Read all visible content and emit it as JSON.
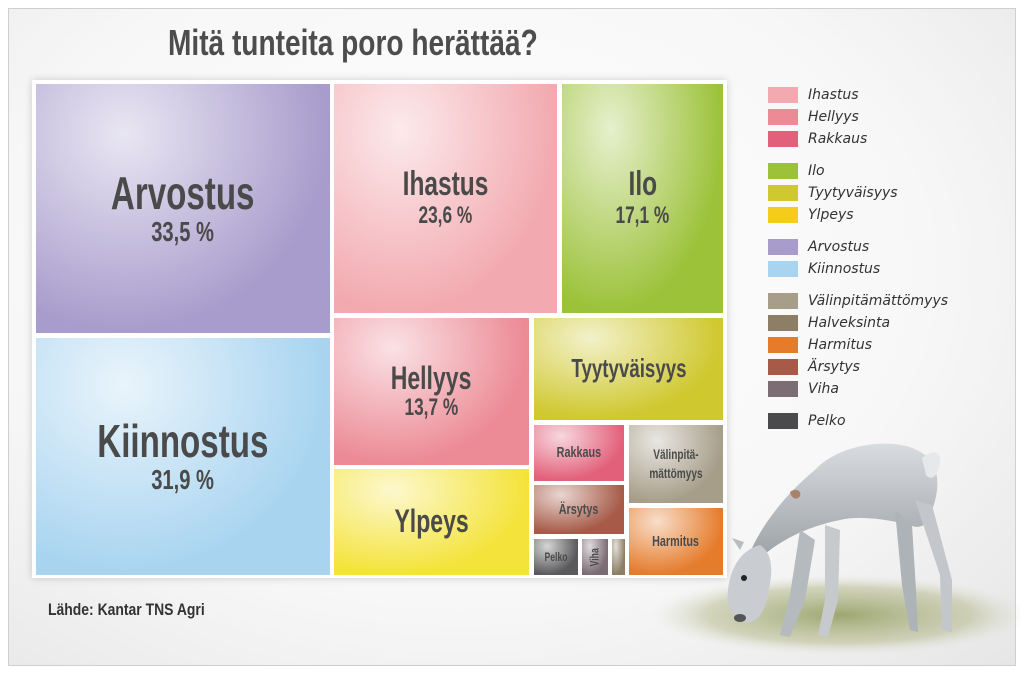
{
  "chart_data": {
    "type": "treemap",
    "title": "Mitä tunteita poro herättää?",
    "cells": [
      {
        "label": "Arvostus",
        "value": 33.5,
        "display": "33,5 %",
        "color": "#a89ccc"
      },
      {
        "label": "Kiinnostus",
        "value": 31.9,
        "display": "31,9 %",
        "color": "#a8d4f0"
      },
      {
        "label": "Ihastus",
        "value": 23.6,
        "display": "23,6 %",
        "color": "#f2aab0"
      },
      {
        "label": "Ilo",
        "value": 17.1,
        "display": "17,1 %",
        "color": "#9cc23a"
      },
      {
        "label": "Hellyys",
        "value": 13.7,
        "display": "13,7 %",
        "color": "#ec8a95"
      },
      {
        "label": "Tyytyväisyys",
        "value": null,
        "display": "",
        "color": "#cfc82e"
      },
      {
        "label": "Ylpeys",
        "value": null,
        "display": "",
        "color": "#f4e33a"
      },
      {
        "label": "Rakkaus",
        "value": null,
        "display": "",
        "color": "#e2607a"
      },
      {
        "label": "Välinpitä-\nmättömyys",
        "value": null,
        "display": "",
        "color": "#a79e8a"
      },
      {
        "label": "Ärsytys",
        "value": null,
        "display": "",
        "color": "#a65a47"
      },
      {
        "label": "Harmitus",
        "value": null,
        "display": "",
        "color": "#e57c2c"
      },
      {
        "label": "Pelko",
        "value": null,
        "display": "",
        "color": "#5a5a5c"
      },
      {
        "label": "Viha",
        "value": null,
        "display": "",
        "color": "#7c6c74"
      },
      {
        "label": "",
        "value": null,
        "display": "",
        "color": "#8c7f66"
      }
    ],
    "legend": [
      {
        "label": "Ihastus",
        "color": "#f2aab0"
      },
      {
        "label": "Hellyys",
        "color": "#ec8a95"
      },
      {
        "label": "Rakkaus",
        "color": "#e2607a"
      },
      {
        "label": "Ilo",
        "color": "#9cc23a"
      },
      {
        "label": "Tyytyväisyys",
        "color": "#cfc82e"
      },
      {
        "label": "Ylpeys",
        "color": "#f4cc1c"
      },
      {
        "label": "Arvostus",
        "color": "#a89ccc"
      },
      {
        "label": "Kiinnostus",
        "color": "#a8d4f0"
      },
      {
        "label": "Välinpitämättömyys",
        "color": "#a79e8a"
      },
      {
        "label": "Halveksinta",
        "color": "#8c7f66"
      },
      {
        "label": "Harmitus",
        "color": "#e57c2c"
      },
      {
        "label": "Ärsytys",
        "color": "#a65a47"
      },
      {
        "label": "Viha",
        "color": "#7c6c74"
      },
      {
        "label": "Pelko",
        "color": "#4a4a4c"
      }
    ],
    "source": "Lähde: Kantar TNS Agri"
  }
}
